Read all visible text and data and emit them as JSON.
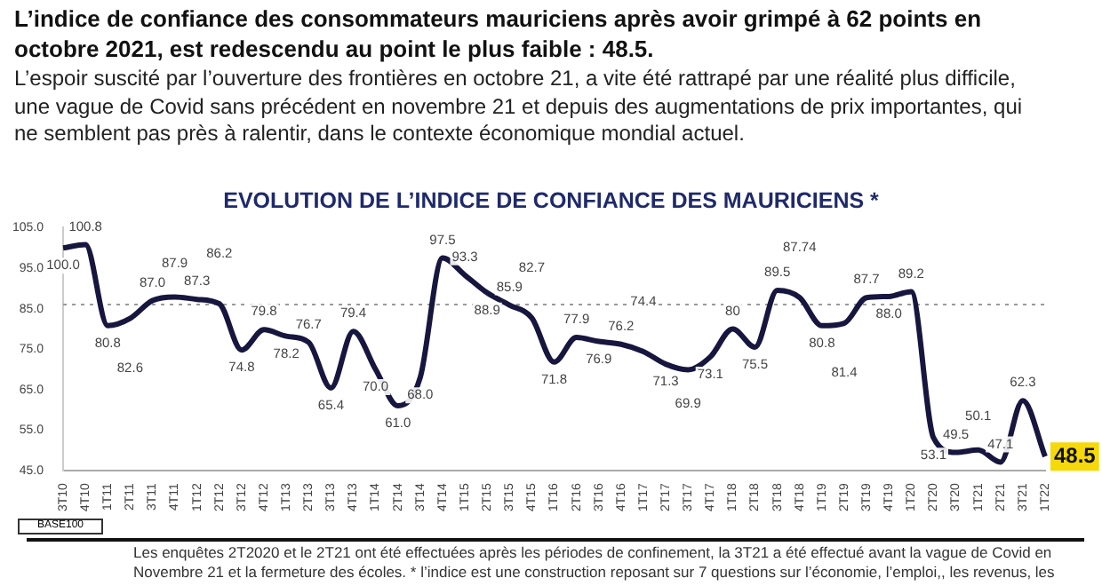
{
  "chart_data": {
    "type": "line",
    "title": "L’indice de confiance des consommateurs mauriciens après avoir grimpé à 62 points en octobre 2021, est redescendu au point le plus faible : 48.5.",
    "subtitle": "L’espoir suscité par l’ouverture des frontières en octobre 21, a vite été rattrapé par une réalité plus difficile, une vague de Covid sans précédent en novembre  21 et depuis des augmentations de prix importantes, qui ne semblent pas près à ralentir, dans le contexte économique mondial actuel.",
    "annotations": [
      "EVOLUTION DE L’INDICE DE CONFIANCE DES MAURICIENS *",
      "BASE100",
      "Les enquêtes  2T2020  et le 2T21 ont été effectuées après les périodes de confinement, la 3T21 a été effectué avant la vague de Covid en Novembre 21 et la fermeture des écoles. * l’indice est une construction  reposant sur 7 questions sur l’économie, l’emploi,, les revenus, les"
    ],
    "categories": [
      "3T10",
      "4T10",
      "1T11",
      "2T11",
      "3T11",
      "4T11",
      "1T12",
      "2T12",
      "3T12",
      "4T12",
      "1T13",
      "2T13",
      "3T13",
      "4T13",
      "1T14",
      "2T14",
      "3T14",
      "4T14",
      "1T15",
      "2T15",
      "3T15",
      "4T15",
      "1T16",
      "2T16",
      "3T16",
      "4T16",
      "1T17",
      "2T17",
      "3T17",
      "4T17",
      "1T18",
      "2T18",
      "3T18",
      "4T18",
      "1T19",
      "2T19",
      "3T19",
      "4T19",
      "1T20",
      "2T20",
      "3T20",
      "1T21",
      "2T21",
      "3T21",
      "1T22"
    ],
    "series": [
      {
        "color": "#16163f",
        "values": [
          100.0,
          100.8,
          80.8,
          82.6,
          87.0,
          87.9,
          87.3,
          86.2,
          74.8,
          79.8,
          78.2,
          76.7,
          65.4,
          79.4,
          70.0,
          61.0,
          68.0,
          97.5,
          93.3,
          88.9,
          85.9,
          82.7,
          71.8,
          77.9,
          76.9,
          76.2,
          74.4,
          71.3,
          69.9,
          73.1,
          80,
          75.5,
          89.5,
          87.74,
          80.8,
          81.4,
          87.7,
          88.0,
          89.2,
          53.1,
          49.5,
          50.1,
          47.1,
          62.3,
          48.5
        ],
        "value_labels": [
          "100.0",
          "100.8",
          "80.8",
          "82.6",
          "87.0",
          "87.9",
          "87.3",
          "86.2",
          "74.8",
          "79.8",
          "78.2",
          "76.7",
          "65.4",
          "79.4",
          "70.0",
          "61.0",
          "68.0",
          "97.5",
          "93.3",
          "88.9",
          "85.9",
          "82.7",
          "71.8",
          "77.9",
          "76.9",
          "76.2",
          "74.4",
          "71.3",
          "69.9",
          "73.1",
          "80",
          "75.5",
          "89.5",
          "87.74",
          "80.8",
          "81.4",
          "87.7",
          "88.0",
          "89.2",
          "53.1",
          "49.5",
          "50.1",
          "47.1",
          "62.3",
          "48.5"
        ]
      }
    ],
    "ylim": [
      45,
      105
    ],
    "yticks": [
      {
        "value": 45,
        "label": "45.0"
      },
      {
        "value": 55,
        "label": "55.0"
      },
      {
        "value": 65,
        "label": "65.0"
      },
      {
        "value": 75,
        "label": "75.0"
      },
      {
        "value": 85,
        "label": "85.0"
      },
      {
        "value": 95,
        "label": "95.0"
      },
      {
        "value": 105,
        "label": "105.0"
      }
    ],
    "ref_lines": [
      {
        "axis": "y",
        "value": 86,
        "label": null,
        "color": "#999999",
        "line_style": "dotted"
      }
    ],
    "grid": false,
    "legend": false,
    "marker": "none",
    "line_style": "solid"
  }
}
